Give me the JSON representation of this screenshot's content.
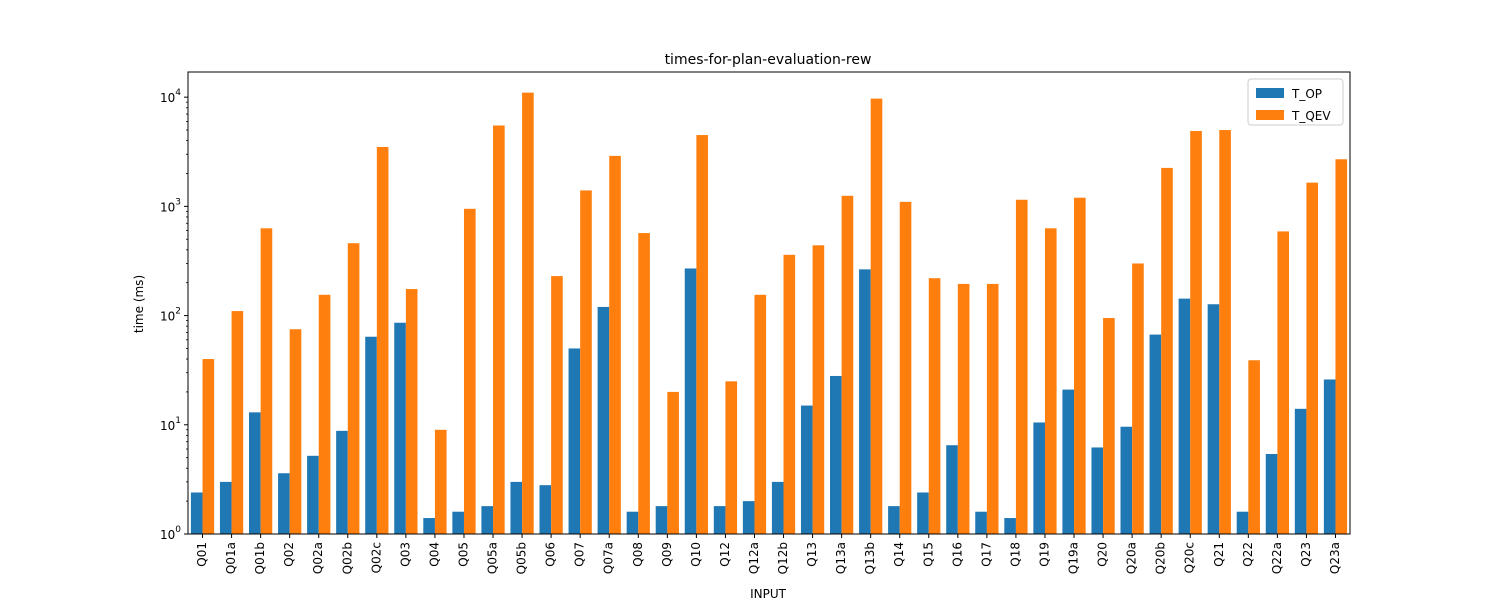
{
  "chart_data": {
    "type": "bar",
    "title": "times-for-plan-evaluation-rew",
    "xlabel": "INPUT",
    "ylabel": "time (ms)",
    "yscale": "log",
    "ylim": [
      1,
      17000
    ],
    "yticks": [
      {
        "value": 1,
        "mantissa": "10",
        "exp": "0"
      },
      {
        "value": 10,
        "mantissa": "10",
        "exp": "1"
      },
      {
        "value": 100,
        "mantissa": "10",
        "exp": "2"
      },
      {
        "value": 1000,
        "mantissa": "10",
        "exp": "3"
      },
      {
        "value": 10000,
        "mantissa": "10",
        "exp": "4"
      }
    ],
    "legend_position": "top-right",
    "categories": [
      "Q01",
      "Q01a",
      "Q01b",
      "Q02",
      "Q02a",
      "Q02b",
      "Q02c",
      "Q03",
      "Q04",
      "Q05",
      "Q05a",
      "Q05b",
      "Q06",
      "Q07",
      "Q07a",
      "Q08",
      "Q09",
      "Q10",
      "Q12",
      "Q12a",
      "Q12b",
      "Q13",
      "Q13a",
      "Q13b",
      "Q14",
      "Q15",
      "Q16",
      "Q17",
      "Q18",
      "Q19",
      "Q19a",
      "Q20",
      "Q20a",
      "Q20b",
      "Q20c",
      "Q21",
      "Q22",
      "Q22a",
      "Q23",
      "Q23a"
    ],
    "series": [
      {
        "name": "T_OP",
        "color": "#1f77b4",
        "values": [
          2.4,
          3.0,
          13,
          3.6,
          5.2,
          8.8,
          64,
          86,
          1.4,
          1.6,
          1.8,
          3.0,
          2.8,
          50,
          120,
          1.6,
          1.8,
          270,
          1.8,
          2.0,
          3.0,
          15,
          28,
          265,
          1.8,
          2.4,
          6.5,
          1.6,
          1.4,
          10.5,
          21,
          6.2,
          9.6,
          67,
          143,
          127,
          1.6,
          5.4,
          14,
          26
        ]
      },
      {
        "name": "T_QEV",
        "color": "#ff7f0e",
        "values": [
          40,
          110,
          630,
          75,
          155,
          460,
          3500,
          175,
          9,
          950,
          5500,
          11000,
          230,
          1400,
          2900,
          570,
          20,
          4500,
          25,
          155,
          360,
          440,
          1250,
          9700,
          1100,
          220,
          195,
          195,
          1150,
          630,
          1200,
          95,
          300,
          2250,
          4900,
          5000,
          39,
          590,
          1650,
          2700
        ]
      }
    ]
  }
}
